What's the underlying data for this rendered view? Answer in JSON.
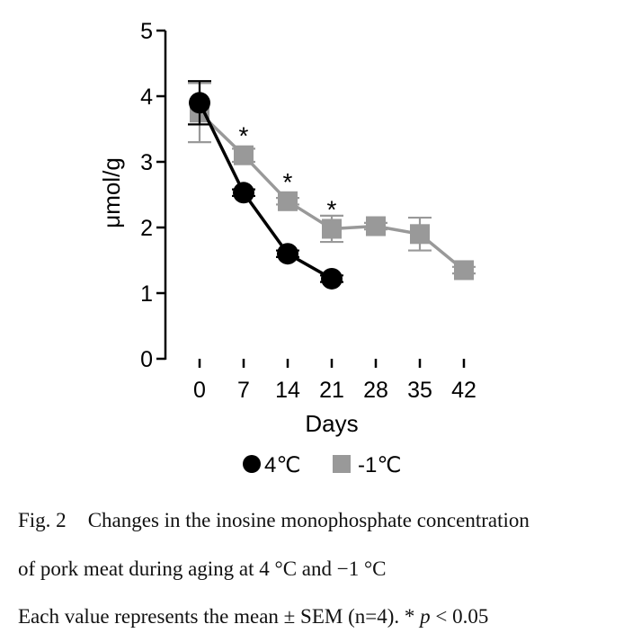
{
  "chart_data": {
    "type": "line",
    "title": "",
    "xlabel": "Days",
    "ylabel": "μmol/g",
    "x": [
      0,
      7,
      14,
      21,
      28,
      35,
      42
    ],
    "x_tick_labels": [
      "0",
      "7",
      "14",
      "21",
      "28",
      "35",
      "42"
    ],
    "ylim": [
      0,
      5
    ],
    "y_ticks": [
      0,
      1,
      2,
      3,
      4,
      5
    ],
    "y_tick_labels": [
      "0",
      "1",
      "2",
      "3",
      "4",
      "5"
    ],
    "grid": false,
    "legend_position": "bottom",
    "series": [
      {
        "name": "-1℃",
        "marker": "square",
        "color": "#999999",
        "x": [
          0,
          7,
          14,
          21,
          28,
          35,
          42
        ],
        "values": [
          3.75,
          3.1,
          2.4,
          1.98,
          2.02,
          1.9,
          1.35
        ],
        "sem": [
          0.45,
          0.1,
          0.05,
          0.2,
          0.05,
          0.25,
          0.05
        ]
      },
      {
        "name": "4℃",
        "marker": "circle",
        "color": "#000000",
        "x": [
          0,
          7,
          14,
          21
        ],
        "values": [
          3.9,
          2.53,
          1.6,
          1.22
        ],
        "sem": [
          0.33,
          0.05,
          0.05,
          0.05
        ]
      }
    ],
    "annotations": [
      {
        "text": "*",
        "x": 7,
        "y": 3.1
      },
      {
        "text": "*",
        "x": 14,
        "y": 2.4
      },
      {
        "text": "*",
        "x": 21,
        "y": 1.98
      }
    ]
  },
  "caption": {
    "fig_number": "Fig. 2",
    "line1": "Changes in the inosine monophosphate concentration",
    "line2": "of pork meat during aging at 4 °C and −1 °C",
    "line3_prefix": "Each value represents the mean ± SEM (n=4). * ",
    "line3_p": "p",
    "line3_suffix": " < 0.05"
  }
}
